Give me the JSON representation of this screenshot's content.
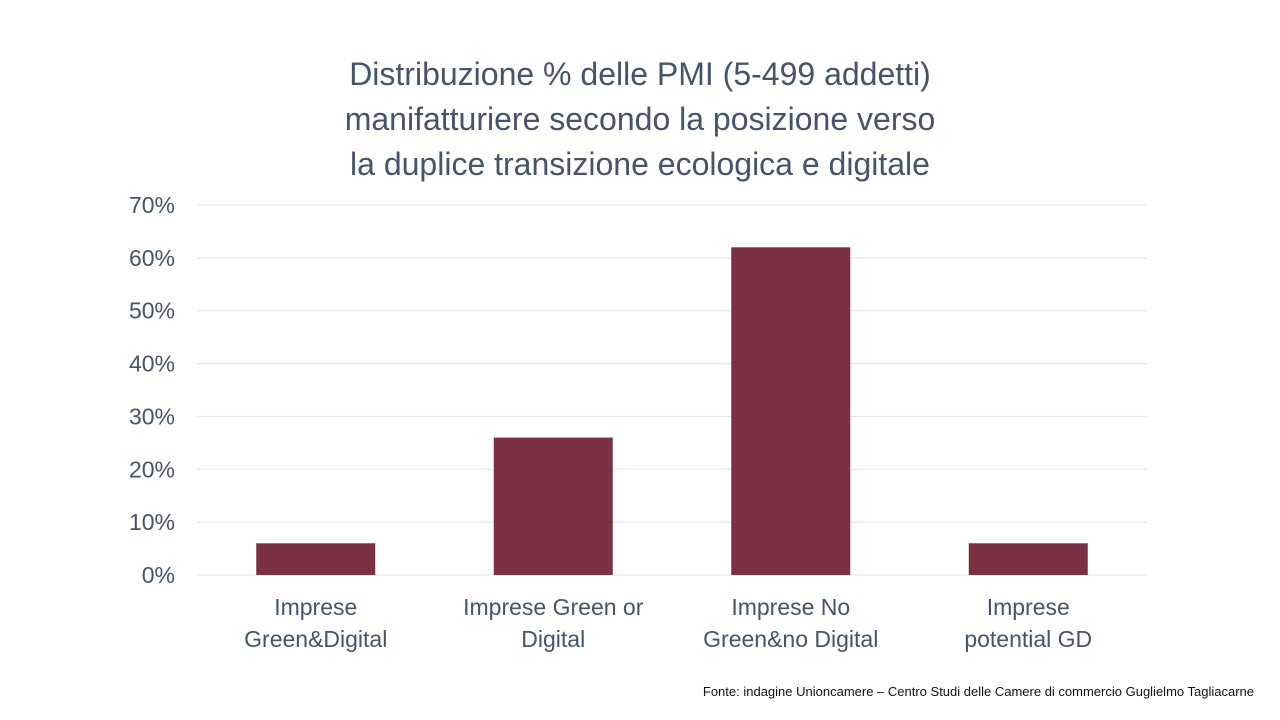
{
  "chart_data": {
    "type": "bar",
    "title_lines": [
      "Distribuzione % delle PMI (5-499 addetti)",
      "manifatturiere secondo la posizione verso",
      "la duplice transizione ecologica e digitale"
    ],
    "categories": [
      [
        "Imprese",
        "Green&Digital"
      ],
      [
        "Imprese Green or",
        "Digital"
      ],
      [
        "Imprese No",
        "Green&no Digital"
      ],
      [
        "Imprese",
        "potential GD"
      ]
    ],
    "values": [
      6,
      26,
      62,
      6
    ],
    "yticks": [
      "0%",
      "10%",
      "20%",
      "30%",
      "40%",
      "50%",
      "60%",
      "70%"
    ],
    "ylim": [
      0,
      70
    ],
    "grid": true,
    "bar_color": "#7b3044"
  },
  "source": "Fonte: indagine Unioncamere – Centro Studi delle Camere di commercio Guglielmo Tagliacarne"
}
